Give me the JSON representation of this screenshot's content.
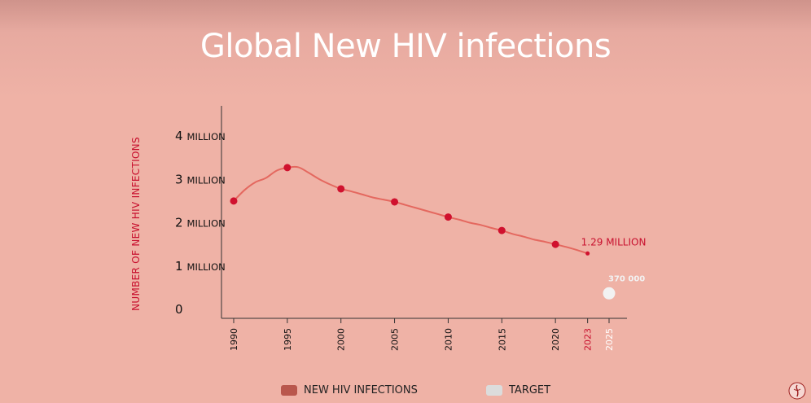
{
  "chart_data": {
    "type": "line",
    "title": "Global New HIV infections",
    "ylabel": "NUMBER OF NEW HIV INFECTIONS",
    "ylim": [
      0,
      4200000
    ],
    "y_ticks": [
      {
        "value": 0,
        "num": "0",
        "unit": ""
      },
      {
        "value": 1000000,
        "num": "1",
        "unit": "MILLION"
      },
      {
        "value": 2000000,
        "num": "2",
        "unit": "MILLION"
      },
      {
        "value": 3000000,
        "num": "3",
        "unit": "MILLION"
      },
      {
        "value": 4000000,
        "num": "4",
        "unit": "MILLION"
      }
    ],
    "x_ticks": [
      {
        "value": 1990,
        "label": "1990",
        "color": "#111111"
      },
      {
        "value": 1995,
        "label": "1995",
        "color": "#111111"
      },
      {
        "value": 2000,
        "label": "2000",
        "color": "#111111"
      },
      {
        "value": 2005,
        "label": "2005",
        "color": "#111111"
      },
      {
        "value": 2010,
        "label": "2010",
        "color": "#111111"
      },
      {
        "value": 2015,
        "label": "2015",
        "color": "#111111"
      },
      {
        "value": 2020,
        "label": "2020",
        "color": "#111111"
      },
      {
        "value": 2023,
        "label": "2023",
        "color": "#c8102e"
      },
      {
        "value": 2025,
        "label": "2025",
        "color": "#ffffff"
      }
    ],
    "xlim": [
      1989.5,
      2026
    ],
    "series": [
      {
        "name": "NEW HIV INFECTIONS",
        "color": "#e4685f",
        "line_points": [
          {
            "x": 1990,
            "y": 2500000
          },
          {
            "x": 1991,
            "y": 2750000
          },
          {
            "x": 1992,
            "y": 2930000
          },
          {
            "x": 1993,
            "y": 3030000
          },
          {
            "x": 1994,
            "y": 3200000
          },
          {
            "x": 1995,
            "y": 3270000
          },
          {
            "x": 1996,
            "y": 3280000
          },
          {
            "x": 1997,
            "y": 3150000
          },
          {
            "x": 1998,
            "y": 3000000
          },
          {
            "x": 1999,
            "y": 2880000
          },
          {
            "x": 2000,
            "y": 2780000
          },
          {
            "x": 2001,
            "y": 2720000
          },
          {
            "x": 2002,
            "y": 2650000
          },
          {
            "x": 2003,
            "y": 2580000
          },
          {
            "x": 2004,
            "y": 2530000
          },
          {
            "x": 2005,
            "y": 2480000
          },
          {
            "x": 2006,
            "y": 2410000
          },
          {
            "x": 2007,
            "y": 2340000
          },
          {
            "x": 2008,
            "y": 2270000
          },
          {
            "x": 2009,
            "y": 2200000
          },
          {
            "x": 2010,
            "y": 2130000
          },
          {
            "x": 2011,
            "y": 2070000
          },
          {
            "x": 2012,
            "y": 2000000
          },
          {
            "x": 2013,
            "y": 1950000
          },
          {
            "x": 2014,
            "y": 1880000
          },
          {
            "x": 2015,
            "y": 1820000
          },
          {
            "x": 2016,
            "y": 1740000
          },
          {
            "x": 2017,
            "y": 1680000
          },
          {
            "x": 2018,
            "y": 1610000
          },
          {
            "x": 2019,
            "y": 1560000
          },
          {
            "x": 2020,
            "y": 1500000
          },
          {
            "x": 2021,
            "y": 1440000
          },
          {
            "x": 2022,
            "y": 1370000
          },
          {
            "x": 2023,
            "y": 1290000
          }
        ],
        "markers": [
          {
            "x": 1990,
            "y": 2500000
          },
          {
            "x": 1995,
            "y": 3270000
          },
          {
            "x": 2000,
            "y": 2780000
          },
          {
            "x": 2005,
            "y": 2480000
          },
          {
            "x": 2010,
            "y": 2130000
          },
          {
            "x": 2015,
            "y": 1820000
          },
          {
            "x": 2020,
            "y": 1500000
          },
          {
            "x": 2023,
            "y": 1290000
          }
        ]
      }
    ],
    "annotations": [
      {
        "text": "1.29 MILLION",
        "x": 2023,
        "y": 1290000,
        "color": "#c8102e"
      }
    ],
    "target": {
      "name": "TARGET",
      "x": 2025,
      "y": 370000,
      "label": "370 000",
      "color": "#f2f2f2"
    },
    "legend": [
      {
        "label": "NEW HIV INFECTIONS",
        "color": "#b9574d"
      },
      {
        "label": "TARGET",
        "color": "#dcdcdc"
      }
    ],
    "legend_position": "bottom",
    "grid": false
  }
}
